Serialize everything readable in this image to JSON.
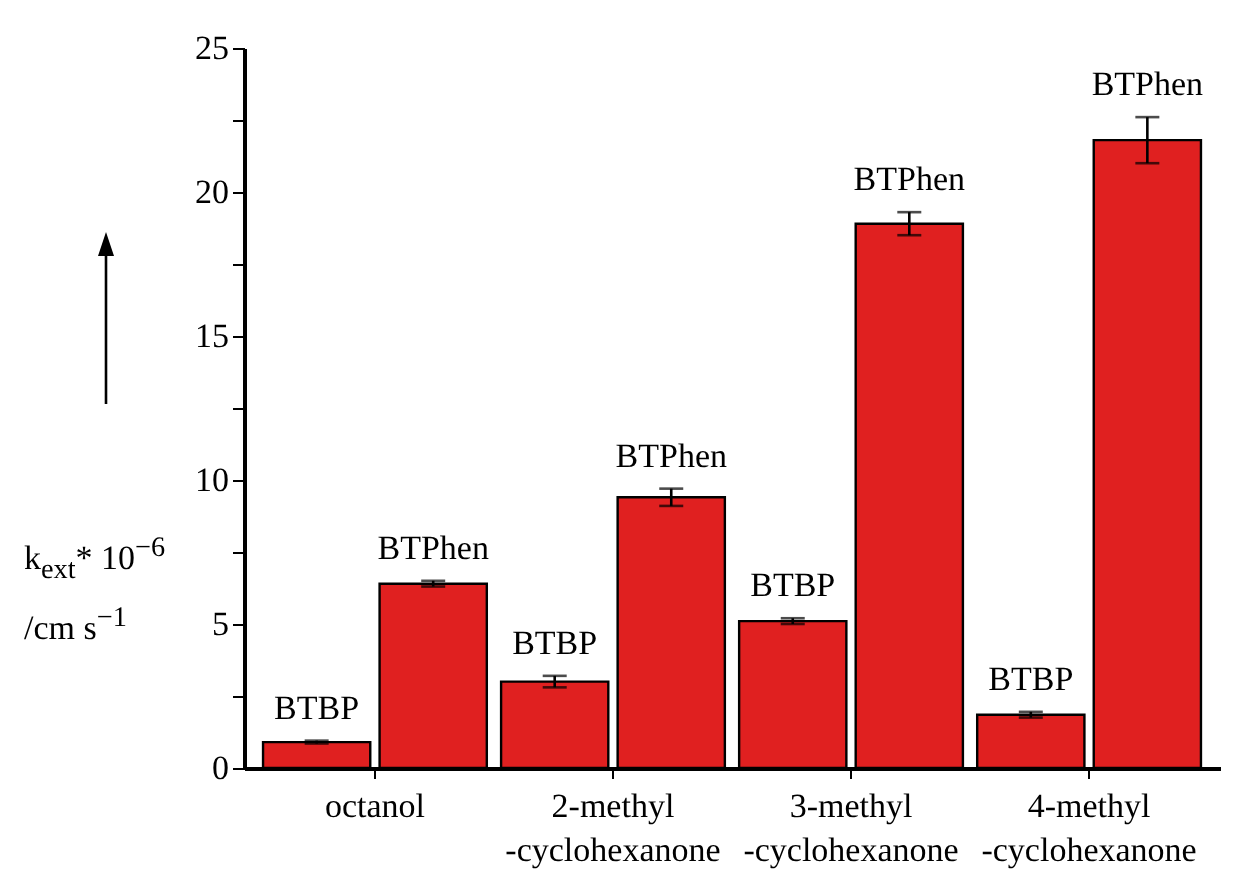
{
  "chart_data": {
    "type": "bar",
    "ylabel": "k$_{ext}$* 10$^{−6}$\n/cm s$^{−1}$",
    "categories": [
      "octanol",
      "2-methyl\n-cyclohexanone",
      "3-methyl\n-cyclohexanone",
      "4-methyl\n-cyclohexanone"
    ],
    "series": [
      {
        "name": "BTBP",
        "color": "#e02020",
        "values": [
          0.9,
          3.0,
          5.1,
          1.85
        ],
        "errors": [
          0.05,
          0.2,
          0.1,
          0.1
        ]
      },
      {
        "name": "BTPhen",
        "color": "#e02020",
        "values": [
          6.4,
          9.4,
          18.9,
          21.8
        ],
        "errors": [
          0.1,
          0.3,
          0.4,
          0.8
        ]
      }
    ],
    "ylim": [
      0,
      25
    ],
    "yticks": [
      0,
      {
        "value": 2.5,
        "label": null
      },
      5,
      {
        "value": 7.5,
        "label": null
      },
      10,
      {
        "value": 12.5,
        "label": null
      },
      15,
      {
        "value": 17.5,
        "label": null
      },
      20,
      {
        "value": 22.5,
        "label": null
      },
      25
    ],
    "grid": false,
    "legend": false
  }
}
